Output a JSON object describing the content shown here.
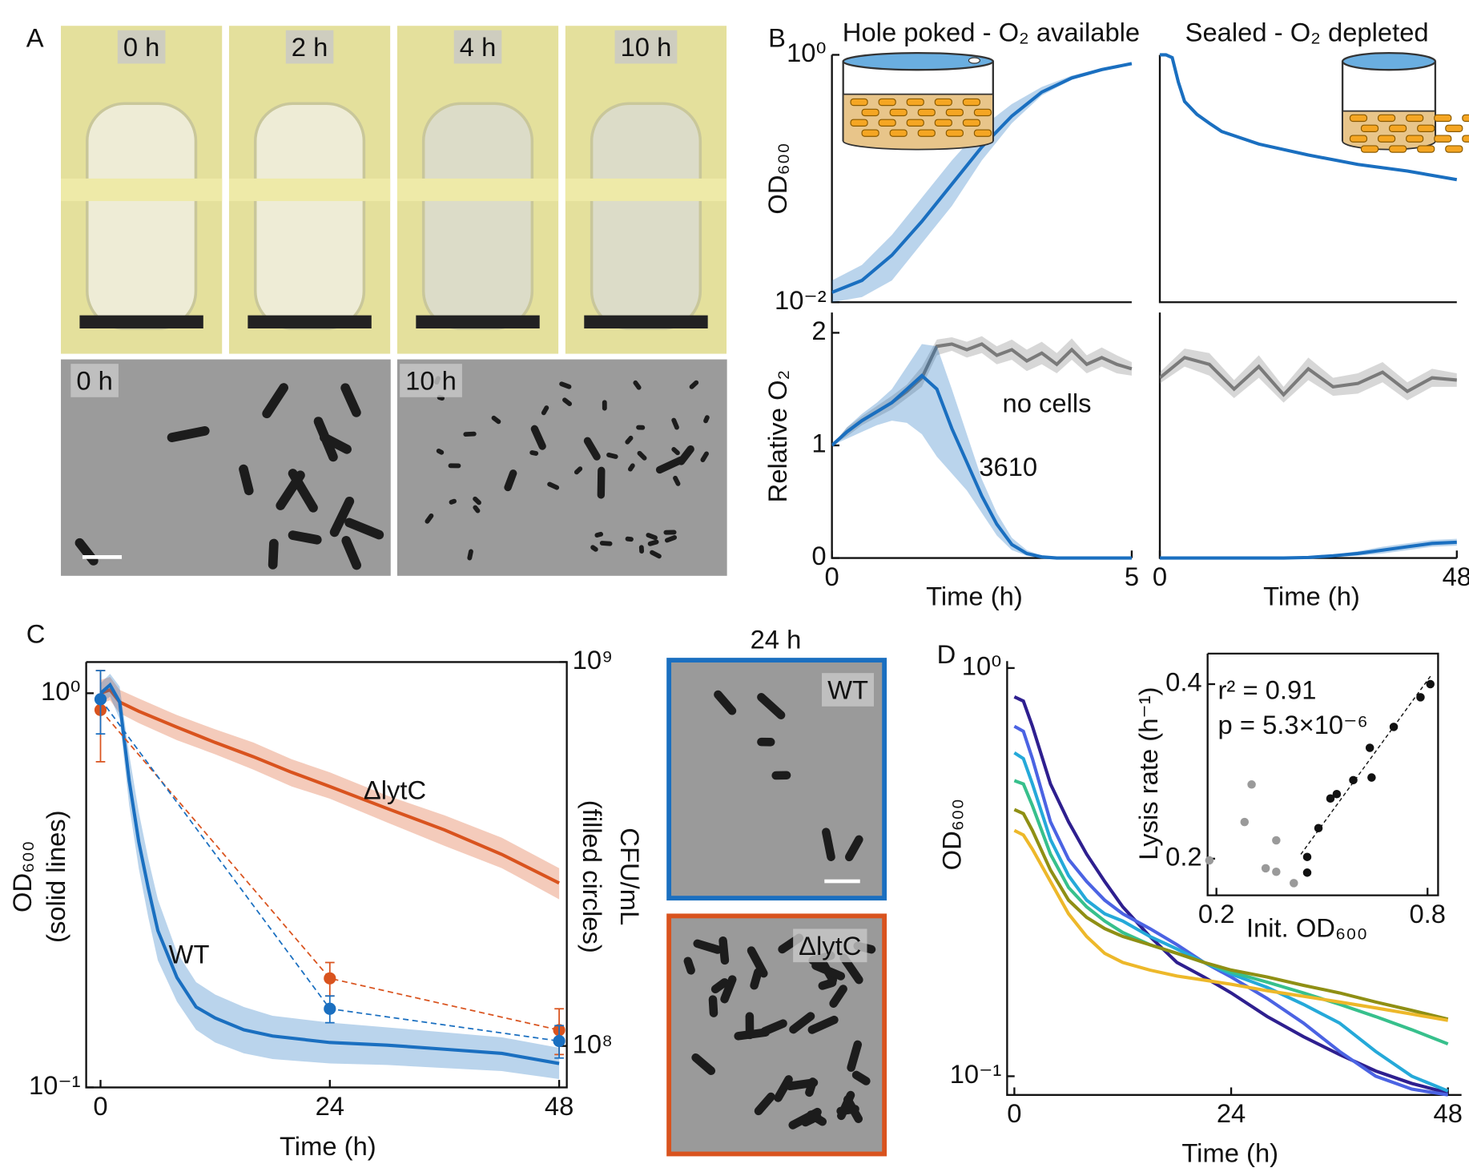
{
  "panel_labels": [
    "A",
    "B",
    "C",
    "D"
  ],
  "photos": {
    "tubes": [
      "0 h",
      "2 h",
      "4 h",
      "10 h"
    ],
    "micrographs_a": [
      "0 h",
      "10 h"
    ],
    "micrographs_c": {
      "title": "24 h",
      "labels": [
        "WT",
        "ΔlytC"
      ]
    }
  },
  "chart_data": [
    {
      "type": "line",
      "title": "Hole poked - O₂ available",
      "title_color": "#7cb342",
      "ylabel": [
        "OD₆₀₀"
      ],
      "log_y": true,
      "xlim": [
        0,
        5
      ],
      "ylim": [
        0.01,
        1
      ],
      "yticks": [
        {
          "value": 0.01,
          "label": "10⁻²"
        },
        {
          "value": 1,
          "label": "10⁰"
        }
      ],
      "series": [
        {
          "color": "#1a6fc0",
          "x": [
            0,
            0.5,
            1,
            1.5,
            2,
            2.5,
            3,
            3.5,
            4,
            4.5,
            5
          ],
          "values": [
            0.012,
            0.015,
            0.024,
            0.045,
            0.09,
            0.18,
            0.32,
            0.5,
            0.65,
            0.76,
            0.85
          ],
          "lower": [
            0.01,
            0.011,
            0.015,
            0.03,
            0.06,
            0.14,
            0.28,
            0.47,
            0.63,
            0.75,
            0.84
          ],
          "upper": [
            0.015,
            0.02,
            0.035,
            0.07,
            0.14,
            0.26,
            0.4,
            0.55,
            0.68,
            0.78,
            0.86
          ]
        }
      ]
    },
    {
      "type": "line",
      "title": "Sealed - O₂ depleted",
      "title_color": "#1a75c2",
      "log_y": true,
      "xlim": [
        0,
        48
      ],
      "ylim": [
        0.01,
        1
      ],
      "series": [
        {
          "color": "#1a6fc0",
          "x": [
            0,
            1,
            2,
            3,
            4,
            6,
            8,
            10,
            16,
            24,
            32,
            40,
            48
          ],
          "values": [
            1,
            1,
            0.95,
            0.6,
            0.42,
            0.33,
            0.28,
            0.24,
            0.19,
            0.155,
            0.13,
            0.115,
            0.098
          ]
        }
      ]
    },
    {
      "type": "line",
      "ylabel": [
        "Relative O₂"
      ],
      "xlabel": "Time (h)",
      "xlim": [
        0,
        5
      ],
      "ylim": [
        0,
        2.18
      ],
      "xticks": [
        0,
        5
      ],
      "yticks": [
        0,
        1,
        2
      ],
      "series": [
        {
          "name": "no cells",
          "color": "#7a7a7a",
          "x": [
            0,
            0.25,
            0.5,
            0.75,
            1,
            1.25,
            1.5,
            1.75,
            2,
            2.25,
            2.5,
            2.75,
            3,
            3.25,
            3.5,
            3.75,
            4,
            4.25,
            4.5,
            4.75,
            5
          ],
          "values": [
            1,
            1.12,
            1.22,
            1.3,
            1.38,
            1.48,
            1.6,
            1.88,
            1.9,
            1.85,
            1.9,
            1.8,
            1.85,
            1.75,
            1.82,
            1.72,
            1.85,
            1.72,
            1.78,
            1.72,
            1.68
          ],
          "lower": [
            1,
            1.08,
            1.18,
            1.25,
            1.32,
            1.42,
            1.52,
            1.8,
            1.84,
            1.78,
            1.82,
            1.72,
            1.76,
            1.66,
            1.72,
            1.64,
            1.76,
            1.64,
            1.7,
            1.64,
            1.62
          ],
          "upper": [
            1,
            1.16,
            1.26,
            1.35,
            1.44,
            1.54,
            1.7,
            1.94,
            1.96,
            1.92,
            1.97,
            1.88,
            1.94,
            1.85,
            1.92,
            1.82,
            1.95,
            1.8,
            1.87,
            1.8,
            1.74
          ]
        },
        {
          "name": "3610",
          "color": "#1a6fc0",
          "x": [
            0,
            0.25,
            0.5,
            0.75,
            1,
            1.25,
            1.5,
            1.75,
            2,
            2.25,
            2.5,
            2.75,
            3,
            3.25,
            3.5,
            3.75,
            4,
            4.25,
            4.5,
            4.75,
            5
          ],
          "values": [
            1,
            1.12,
            1.22,
            1.3,
            1.38,
            1.5,
            1.62,
            1.5,
            1.15,
            0.85,
            0.55,
            0.3,
            0.12,
            0.04,
            0.01,
            0,
            0,
            0,
            0,
            0,
            0
          ],
          "lower": [
            1,
            1.06,
            1.12,
            1.18,
            1.22,
            1.2,
            1.1,
            0.9,
            0.75,
            0.6,
            0.4,
            0.2,
            0.07,
            0.02,
            0,
            0,
            0,
            0,
            0,
            0,
            0
          ],
          "upper": [
            1,
            1.16,
            1.28,
            1.38,
            1.5,
            1.7,
            1.9,
            1.88,
            1.5,
            1.1,
            0.7,
            0.4,
            0.18,
            0.07,
            0.02,
            0.01,
            0,
            0,
            0,
            0,
            0
          ]
        }
      ]
    },
    {
      "type": "line",
      "xlabel": "Time (h)",
      "xlim": [
        0,
        48
      ],
      "ylim": [
        0,
        2.18
      ],
      "xticks": [
        0,
        48
      ],
      "series": [
        {
          "color": "#7a7a7a",
          "x": [
            0,
            4,
            8,
            12,
            16,
            20,
            24,
            28,
            32,
            36,
            40,
            44,
            48
          ],
          "values": [
            1.6,
            1.78,
            1.72,
            1.5,
            1.7,
            1.45,
            1.68,
            1.52,
            1.55,
            1.65,
            1.48,
            1.6,
            1.58
          ],
          "lower": [
            1.55,
            1.7,
            1.62,
            1.42,
            1.6,
            1.38,
            1.58,
            1.44,
            1.46,
            1.56,
            1.4,
            1.52,
            1.52
          ],
          "upper": [
            1.65,
            1.86,
            1.82,
            1.58,
            1.8,
            1.52,
            1.78,
            1.6,
            1.64,
            1.74,
            1.56,
            1.68,
            1.64
          ]
        },
        {
          "color": "#1a6fc0",
          "x": [
            0,
            4,
            8,
            12,
            16,
            20,
            24,
            28,
            32,
            36,
            40,
            44,
            48
          ],
          "values": [
            0,
            0,
            0,
            0,
            0,
            0,
            0.005,
            0.02,
            0.04,
            0.07,
            0.1,
            0.13,
            0.14
          ],
          "lower": [
            0,
            0,
            0,
            0,
            0,
            0,
            0,
            0.01,
            0.02,
            0.04,
            0.07,
            0.1,
            0.11
          ],
          "upper": [
            0,
            0,
            0,
            0,
            0,
            0,
            0.01,
            0.03,
            0.06,
            0.1,
            0.13,
            0.16,
            0.17
          ]
        }
      ]
    },
    {
      "type": "line",
      "xlabel": "Time (h)",
      "ylabel": [
        "OD₆₀₀",
        "(solid lines)"
      ],
      "y2label": [
        "CFU/mL",
        "(filled circles)"
      ],
      "log_y": true,
      "log_y2": true,
      "box": true,
      "xlim": [
        -1.5,
        48.8
      ],
      "ylim": [
        0.1,
        1.2
      ],
      "y2lim": [
        78000000,
        1000000000
      ],
      "xticks": [
        0,
        24,
        48
      ],
      "yticks": [
        {
          "value": 0.1,
          "label": "10⁻¹"
        },
        {
          "value": 1,
          "label": "10⁰"
        }
      ],
      "y2ticks": [
        {
          "value": 100000000,
          "label": "10⁸"
        },
        {
          "value": 1000000000,
          "label": "10⁹"
        }
      ],
      "series": [
        {
          "name": "ΔlytC",
          "color": "#d9531e",
          "x": [
            0,
            1,
            2,
            4,
            8,
            12,
            16,
            20,
            24,
            30,
            36,
            42,
            48
          ],
          "values": [
            1.0,
            1.02,
            0.95,
            0.9,
            0.82,
            0.75,
            0.69,
            0.63,
            0.58,
            0.51,
            0.45,
            0.39,
            0.33
          ],
          "lower": [
            0.94,
            0.96,
            0.89,
            0.84,
            0.76,
            0.7,
            0.64,
            0.58,
            0.54,
            0.47,
            0.41,
            0.36,
            0.3
          ],
          "upper": [
            1.08,
            1.1,
            1.02,
            0.97,
            0.88,
            0.81,
            0.75,
            0.68,
            0.63,
            0.55,
            0.49,
            0.43,
            0.36
          ]
        },
        {
          "name": "WT",
          "color": "#1a6fc0",
          "x": [
            0,
            1,
            2,
            3,
            4,
            5,
            6,
            8,
            10,
            12,
            15,
            18,
            24,
            30,
            36,
            42,
            48
          ],
          "values": [
            1.0,
            1.05,
            0.95,
            0.6,
            0.42,
            0.32,
            0.25,
            0.19,
            0.16,
            0.15,
            0.14,
            0.135,
            0.13,
            0.128,
            0.125,
            0.122,
            0.115
          ],
          "lower": [
            0.94,
            0.98,
            0.86,
            0.52,
            0.36,
            0.27,
            0.21,
            0.165,
            0.14,
            0.13,
            0.122,
            0.118,
            0.115,
            0.114,
            0.112,
            0.11,
            0.105
          ],
          "upper": [
            1.06,
            1.12,
            1.04,
            0.7,
            0.5,
            0.38,
            0.3,
            0.22,
            0.185,
            0.172,
            0.16,
            0.152,
            0.146,
            0.142,
            0.138,
            0.134,
            0.126
          ]
        },
        {
          "color": "#d9531e",
          "axis": "y2",
          "dashed": true,
          "markers": true,
          "x": [
            0,
            24,
            48
          ],
          "values": [
            750000000,
            150000000,
            110000000
          ],
          "errors": [
            200000000,
            15000000,
            15000000
          ]
        },
        {
          "color": "#1a6fc0",
          "axis": "y2",
          "dashed": true,
          "markers": true,
          "x": [
            0,
            24,
            48
          ],
          "values": [
            800000000,
            125000000,
            103000000
          ],
          "errors": [
            150000000,
            10000000,
            10000000
          ]
        }
      ]
    },
    {
      "type": "line",
      "xlabel": "Time (h)",
      "ylabel": [
        "OD₆₀₀"
      ],
      "log_y": true,
      "xlim": [
        -0.8,
        49.5
      ],
      "ylim": [
        0.09,
        1.04
      ],
      "xticks": [
        0,
        24,
        48
      ],
      "yticks": [
        {
          "value": 0.1,
          "label": "10⁻¹"
        },
        {
          "value": 1,
          "label": "10⁰"
        }
      ],
      "series": [
        {
          "color": "#2e1f8f",
          "x": [
            0,
            1,
            2,
            4,
            6,
            8,
            10,
            12,
            15,
            18,
            21,
            24,
            28,
            32,
            36,
            40,
            44,
            48
          ],
          "values": [
            0.85,
            0.83,
            0.72,
            0.52,
            0.42,
            0.35,
            0.3,
            0.26,
            0.22,
            0.19,
            0.175,
            0.16,
            0.14,
            0.125,
            0.113,
            0.103,
            0.096,
            0.091
          ]
        },
        {
          "color": "#4b63e3",
          "x": [
            0,
            1,
            2,
            4,
            6,
            8,
            10,
            12,
            15,
            18,
            21,
            24,
            28,
            32,
            36,
            40,
            44,
            48
          ],
          "values": [
            0.72,
            0.7,
            0.6,
            0.42,
            0.34,
            0.3,
            0.27,
            0.25,
            0.23,
            0.21,
            0.19,
            0.175,
            0.155,
            0.135,
            0.115,
            0.1,
            0.093,
            0.09
          ]
        },
        {
          "color": "#25a9d9",
          "x": [
            0,
            1,
            2,
            4,
            6,
            8,
            10,
            12,
            15,
            18,
            21,
            24,
            28,
            32,
            36,
            40,
            44,
            48
          ],
          "values": [
            0.62,
            0.6,
            0.52,
            0.38,
            0.31,
            0.27,
            0.25,
            0.24,
            0.22,
            0.205,
            0.19,
            0.178,
            0.165,
            0.15,
            0.135,
            0.115,
            0.1,
            0.092
          ]
        },
        {
          "color": "#37c08c",
          "x": [
            0,
            1,
            2,
            4,
            6,
            8,
            10,
            12,
            15,
            18,
            21,
            24,
            28,
            32,
            36,
            40,
            44,
            48
          ],
          "values": [
            0.53,
            0.52,
            0.46,
            0.35,
            0.29,
            0.26,
            0.24,
            0.225,
            0.21,
            0.2,
            0.19,
            0.18,
            0.17,
            0.16,
            0.15,
            0.14,
            0.13,
            0.12
          ]
        },
        {
          "color": "#8f8f14",
          "x": [
            0,
            1,
            2,
            4,
            6,
            8,
            10,
            12,
            15,
            18,
            21,
            24,
            28,
            32,
            36,
            40,
            44,
            48
          ],
          "values": [
            0.45,
            0.44,
            0.4,
            0.32,
            0.27,
            0.245,
            0.23,
            0.22,
            0.21,
            0.2,
            0.19,
            0.182,
            0.175,
            0.167,
            0.16,
            0.152,
            0.145,
            0.138
          ]
        },
        {
          "color": "#edb82a",
          "x": [
            0,
            1,
            2,
            4,
            6,
            8,
            10,
            12,
            15,
            18,
            21,
            24,
            28,
            32,
            36,
            40,
            44,
            48
          ],
          "values": [
            0.4,
            0.39,
            0.36,
            0.3,
            0.25,
            0.22,
            0.2,
            0.19,
            0.182,
            0.176,
            0.172,
            0.168,
            0.162,
            0.157,
            0.152,
            0.147,
            0.142,
            0.137
          ]
        }
      ]
    },
    {
      "type": "scatter",
      "xlabel": "Init. OD₆₀₀",
      "ylabel": [
        "Lysis rate (h⁻¹)"
      ],
      "box": true,
      "xlim": [
        0.175,
        0.83
      ],
      "ylim": [
        0.158,
        0.435
      ],
      "xticks": [
        0.2,
        0.8
      ],
      "yticks": [
        0.2,
        0.4
      ],
      "annotations": [
        "r² = 0.91",
        "p = 5.3×10⁻⁶"
      ],
      "fit": {
        "x": [
          0.44,
          0.81
        ],
        "y": [
          0.205,
          0.41
        ]
      },
      "series": [
        {
          "color": "#9a9a9a",
          "x": [
            0.18,
            0.3,
            0.28,
            0.34,
            0.37,
            0.37,
            0.42
          ],
          "values": [
            0.198,
            0.285,
            0.242,
            0.189,
            0.221,
            0.185,
            0.172
          ]
        },
        {
          "color": "#111111",
          "x": [
            0.458,
            0.458,
            0.49,
            0.524,
            0.542,
            0.589,
            0.641,
            0.636,
            0.704,
            0.78,
            0.808
          ],
          "values": [
            0.202,
            0.184,
            0.235,
            0.269,
            0.274,
            0.29,
            0.293,
            0.327,
            0.351,
            0.385,
            0.4
          ]
        }
      ]
    }
  ]
}
